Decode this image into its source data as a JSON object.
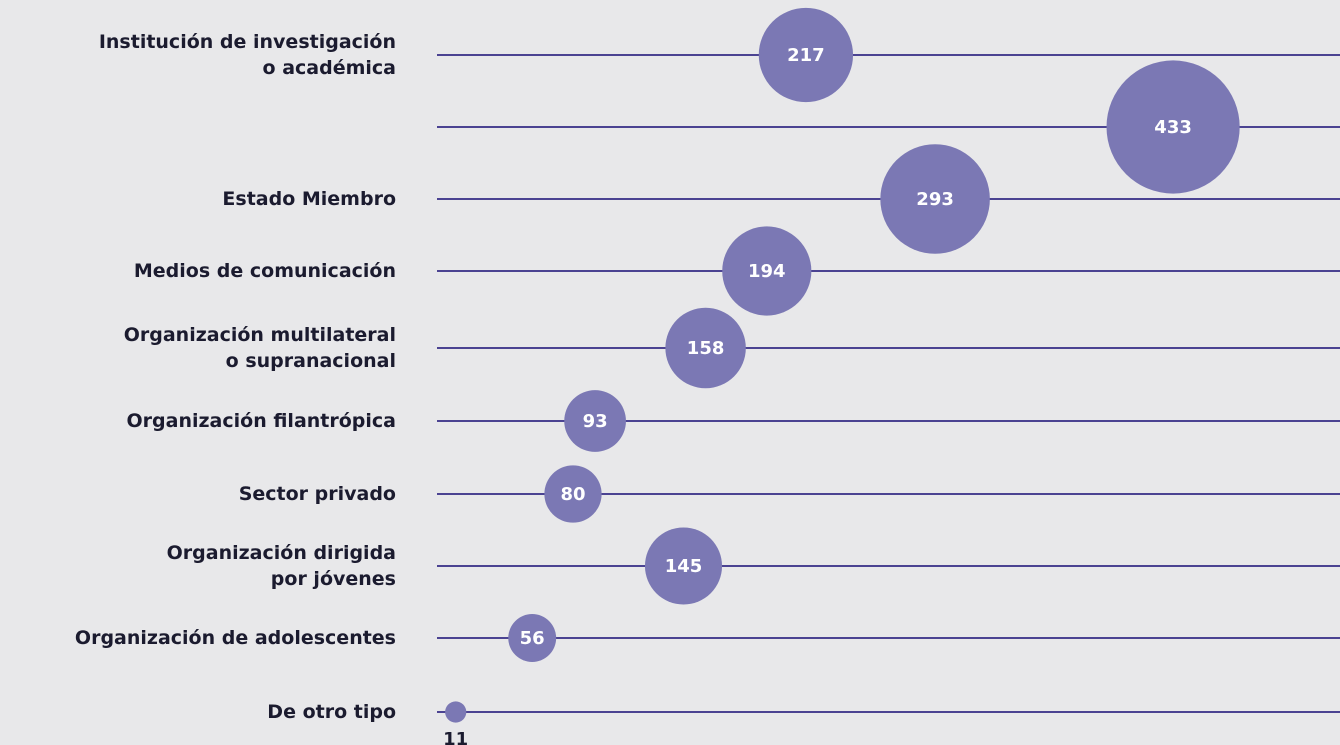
{
  "chart_data": {
    "type": "bubble",
    "categories": [
      "Institución de investigación\no académica",
      null,
      "Estado Miembro",
      "Medios de comunicación",
      "Organización multilateral\no supranacional",
      "Organización filantrópica",
      "Sector privado",
      "Organización dirigida\npor jóvenes",
      "Organización de adolescentes",
      "De otro tipo"
    ],
    "values": [
      217,
      433,
      293,
      194,
      158,
      93,
      80,
      145,
      56,
      11
    ],
    "color": "#7b78b4",
    "line_color": "#4b4392"
  }
}
